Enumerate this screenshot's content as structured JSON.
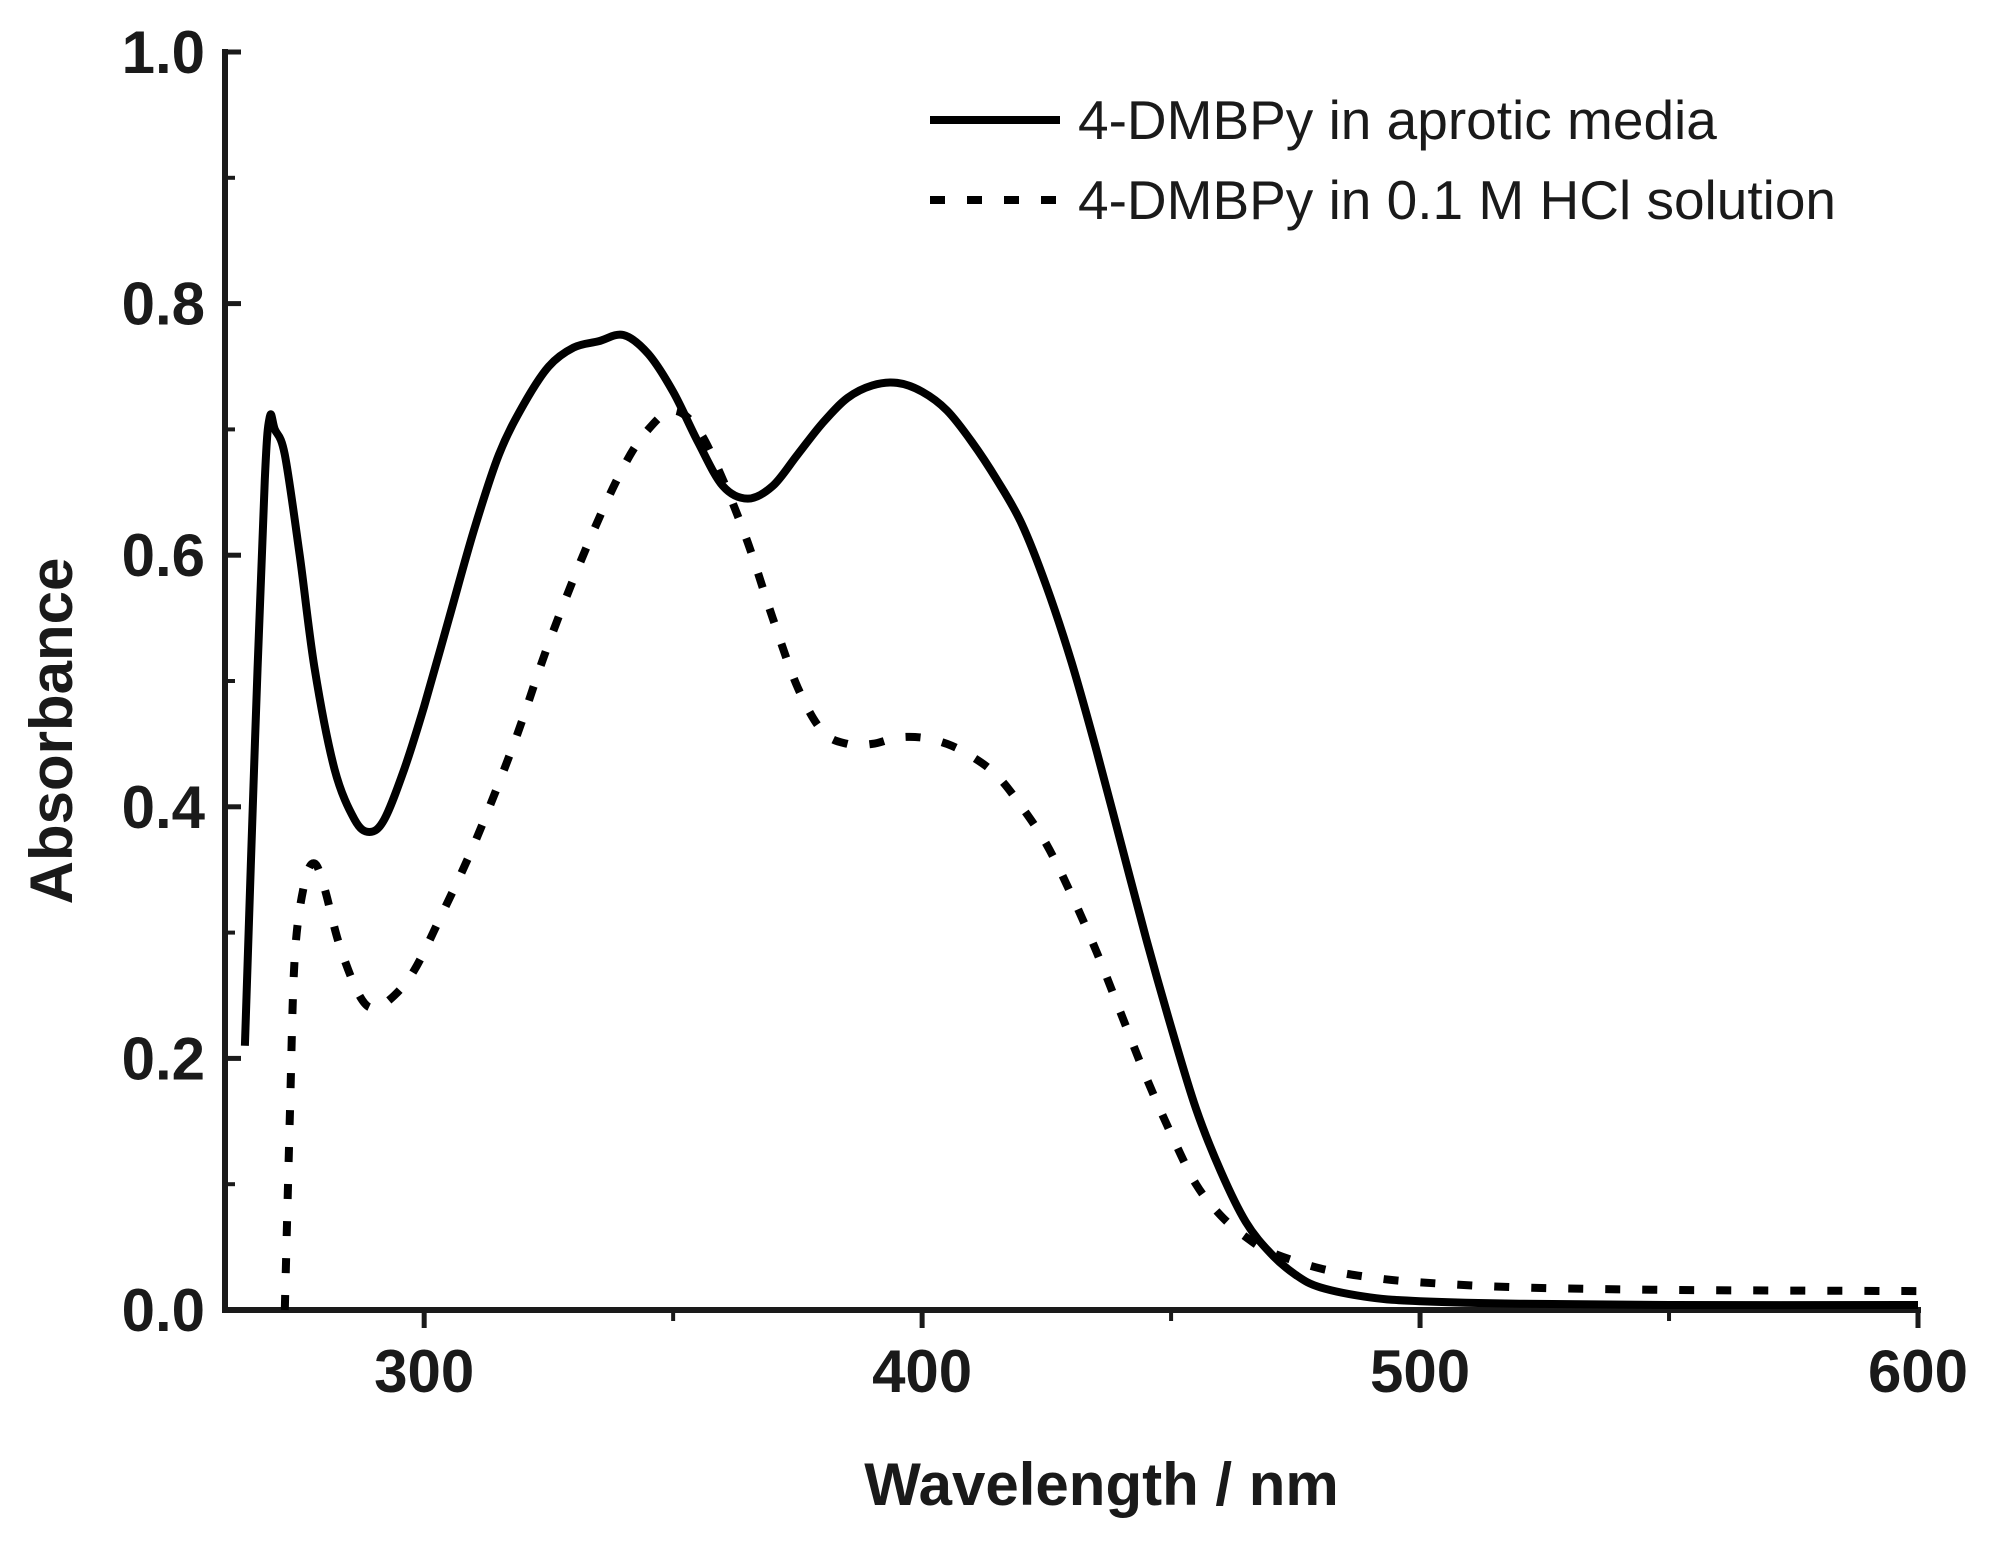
{
  "chart_data": {
    "type": "line",
    "title": "",
    "xlabel": "Wavelength / nm",
    "ylabel": "Absorbance",
    "xlim": [
      260,
      600
    ],
    "ylim": [
      0.0,
      1.0
    ],
    "x_ticks": [
      300,
      400,
      500,
      600
    ],
    "x_tick_labels": [
      "300",
      "400",
      "500",
      "600"
    ],
    "y_ticks": [
      0.0,
      0.2,
      0.4,
      0.6,
      0.8,
      1.0
    ],
    "y_tick_labels": [
      "0.0",
      "0.2",
      "0.4",
      "0.6",
      "0.8",
      "1.0"
    ],
    "grid": false,
    "legend_position": "top-right",
    "series": [
      {
        "name": "4-DMBPy in aprotic media",
        "style": "solid",
        "color": "#000000",
        "points": [
          [
            264,
            0.21
          ],
          [
            266,
            0.45
          ],
          [
            268,
            0.66
          ],
          [
            269,
            0.71
          ],
          [
            270,
            0.7
          ],
          [
            272,
            0.68
          ],
          [
            275,
            0.6
          ],
          [
            278,
            0.51
          ],
          [
            282,
            0.43
          ],
          [
            286,
            0.39
          ],
          [
            289,
            0.38
          ],
          [
            292,
            0.39
          ],
          [
            296,
            0.43
          ],
          [
            300,
            0.48
          ],
          [
            305,
            0.55
          ],
          [
            310,
            0.62
          ],
          [
            315,
            0.68
          ],
          [
            320,
            0.72
          ],
          [
            325,
            0.75
          ],
          [
            330,
            0.765
          ],
          [
            335,
            0.77
          ],
          [
            340,
            0.775
          ],
          [
            345,
            0.76
          ],
          [
            350,
            0.73
          ],
          [
            355,
            0.69
          ],
          [
            360,
            0.655
          ],
          [
            365,
            0.645
          ],
          [
            370,
            0.655
          ],
          [
            375,
            0.68
          ],
          [
            380,
            0.705
          ],
          [
            385,
            0.725
          ],
          [
            390,
            0.735
          ],
          [
            395,
            0.737
          ],
          [
            400,
            0.73
          ],
          [
            405,
            0.715
          ],
          [
            410,
            0.69
          ],
          [
            415,
            0.66
          ],
          [
            420,
            0.625
          ],
          [
            425,
            0.575
          ],
          [
            430,
            0.515
          ],
          [
            435,
            0.445
          ],
          [
            440,
            0.37
          ],
          [
            445,
            0.295
          ],
          [
            450,
            0.225
          ],
          [
            455,
            0.16
          ],
          [
            460,
            0.11
          ],
          [
            465,
            0.07
          ],
          [
            470,
            0.045
          ],
          [
            475,
            0.028
          ],
          [
            480,
            0.018
          ],
          [
            490,
            0.01
          ],
          [
            500,
            0.007
          ],
          [
            520,
            0.005
          ],
          [
            550,
            0.004
          ],
          [
            600,
            0.004
          ]
        ]
      },
      {
        "name": "4-DMBPy in 0.1 M HCl solution",
        "style": "dotted",
        "color": "#000000",
        "points": [
          [
            272,
            0.0
          ],
          [
            273,
            0.15
          ],
          [
            274,
            0.28
          ],
          [
            276,
            0.34
          ],
          [
            278,
            0.355
          ],
          [
            280,
            0.335
          ],
          [
            283,
            0.29
          ],
          [
            287,
            0.25
          ],
          [
            290,
            0.24
          ],
          [
            294,
            0.25
          ],
          [
            298,
            0.27
          ],
          [
            303,
            0.31
          ],
          [
            310,
            0.37
          ],
          [
            318,
            0.45
          ],
          [
            325,
            0.53
          ],
          [
            333,
            0.61
          ],
          [
            340,
            0.67
          ],
          [
            345,
            0.7
          ],
          [
            350,
            0.715
          ],
          [
            355,
            0.7
          ],
          [
            360,
            0.66
          ],
          [
            365,
            0.61
          ],
          [
            370,
            0.55
          ],
          [
            375,
            0.495
          ],
          [
            380,
            0.46
          ],
          [
            385,
            0.45
          ],
          [
            390,
            0.45
          ],
          [
            395,
            0.455
          ],
          [
            400,
            0.455
          ],
          [
            405,
            0.45
          ],
          [
            410,
            0.44
          ],
          [
            415,
            0.425
          ],
          [
            420,
            0.4
          ],
          [
            425,
            0.37
          ],
          [
            430,
            0.33
          ],
          [
            435,
            0.285
          ],
          [
            440,
            0.235
          ],
          [
            445,
            0.185
          ],
          [
            450,
            0.14
          ],
          [
            455,
            0.1
          ],
          [
            460,
            0.075
          ],
          [
            465,
            0.058
          ],
          [
            470,
            0.046
          ],
          [
            480,
            0.033
          ],
          [
            490,
            0.026
          ],
          [
            500,
            0.022
          ],
          [
            520,
            0.018
          ],
          [
            550,
            0.016
          ],
          [
            600,
            0.015
          ]
        ]
      }
    ]
  }
}
